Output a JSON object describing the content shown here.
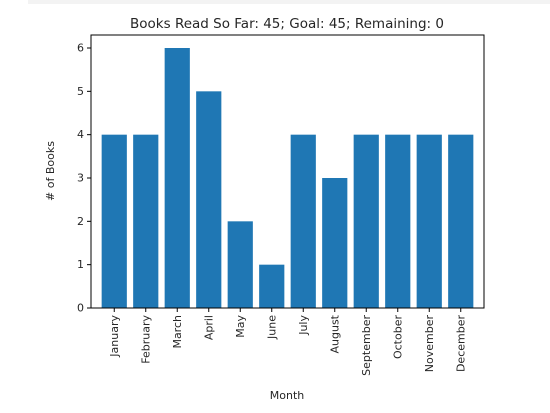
{
  "chart_data": {
    "type": "bar",
    "title": "Books Read So Far: 45; Goal: 45; Remaining: 0",
    "xlabel": "Month",
    "ylabel": "# of Books",
    "categories": [
      "January",
      "February",
      "March",
      "April",
      "May",
      "June",
      "July",
      "August",
      "September",
      "October",
      "November",
      "December"
    ],
    "values": [
      4,
      4,
      6,
      5,
      2,
      1,
      4,
      3,
      4,
      4,
      4,
      4
    ],
    "ylim": [
      0,
      6.3
    ],
    "yticks": [
      0,
      1,
      2,
      3,
      4,
      5,
      6
    ],
    "grid": false,
    "bar_color": "#1f77b4"
  }
}
